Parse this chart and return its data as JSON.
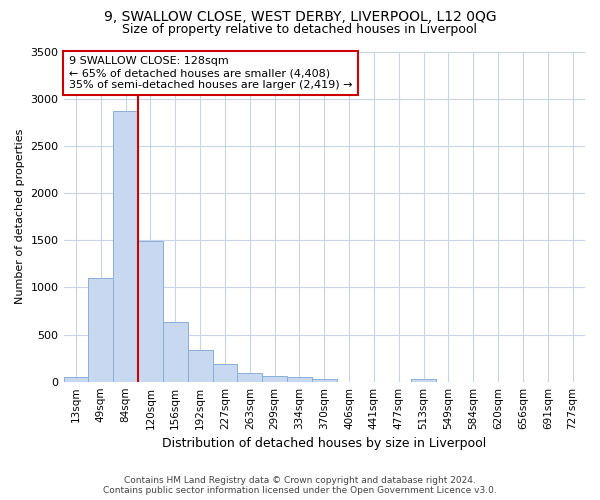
{
  "title1": "9, SWALLOW CLOSE, WEST DERBY, LIVERPOOL, L12 0QG",
  "title2": "Size of property relative to detached houses in Liverpool",
  "xlabel": "Distribution of detached houses by size in Liverpool",
  "ylabel": "Number of detached properties",
  "categories": [
    "13sqm",
    "49sqm",
    "84sqm",
    "120sqm",
    "156sqm",
    "192sqm",
    "227sqm",
    "263sqm",
    "299sqm",
    "334sqm",
    "370sqm",
    "406sqm",
    "441sqm",
    "477sqm",
    "513sqm",
    "549sqm",
    "584sqm",
    "620sqm",
    "656sqm",
    "691sqm",
    "727sqm"
  ],
  "values": [
    50,
    1100,
    2870,
    1490,
    630,
    335,
    185,
    95,
    65,
    50,
    30,
    0,
    0,
    0,
    28,
    0,
    0,
    0,
    0,
    0,
    0
  ],
  "bar_color": "#c8d8f0",
  "bar_edge_color": "#8ab0d8",
  "vline_color": "#cc0000",
  "vline_x_idx": 2.5,
  "annotation_text": "9 SWALLOW CLOSE: 128sqm\n← 65% of detached houses are smaller (4,408)\n35% of semi-detached houses are larger (2,419) →",
  "annotation_box_color": "white",
  "annotation_box_edge_color": "#cc0000",
  "ylim": [
    0,
    3500
  ],
  "yticks": [
    0,
    500,
    1000,
    1500,
    2000,
    2500,
    3000,
    3500
  ],
  "grid_color": "#c8d4e8",
  "background_color": "#ffffff",
  "footer": "Contains HM Land Registry data © Crown copyright and database right 2024.\nContains public sector information licensed under the Open Government Licence v3.0."
}
